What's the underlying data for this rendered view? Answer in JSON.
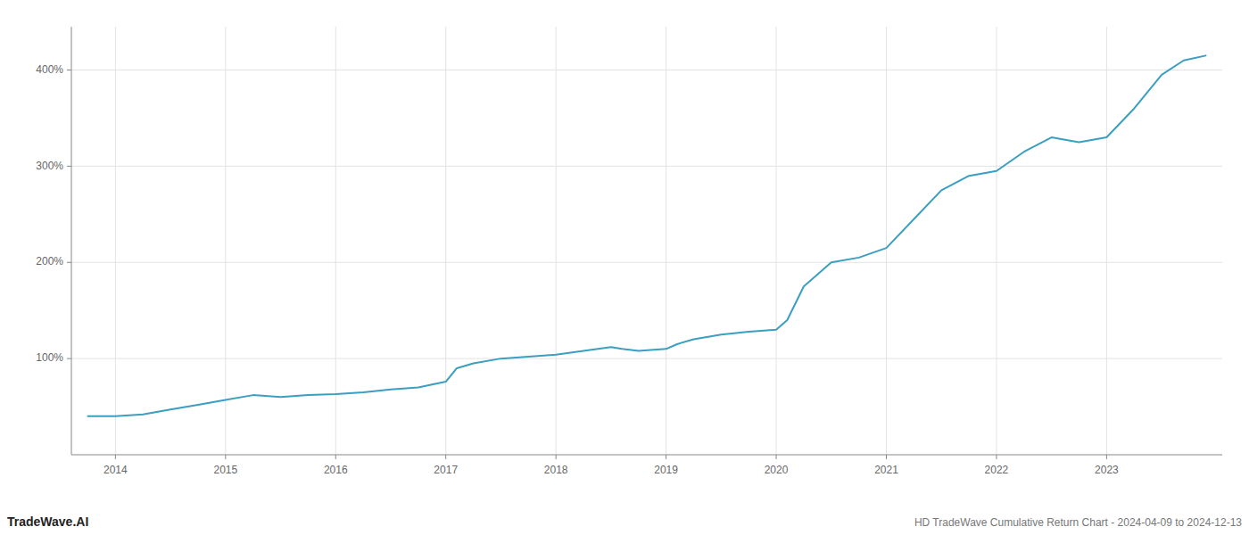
{
  "chart_data": {
    "type": "line",
    "title": "HD TradeWave Cumulative Return Chart - 2024-04-09 to 2024-12-13",
    "annotations": [
      {
        "text": "TradeWave.AI"
      }
    ],
    "x": [
      2013.75,
      2014.0,
      2014.25,
      2014.5,
      2014.75,
      2015.0,
      2015.25,
      2015.5,
      2015.75,
      2016.0,
      2016.25,
      2016.5,
      2016.75,
      2017.0,
      2017.1,
      2017.25,
      2017.5,
      2017.75,
      2018.0,
      2018.25,
      2018.5,
      2018.6,
      2018.75,
      2019.0,
      2019.1,
      2019.25,
      2019.5,
      2019.75,
      2020.0,
      2020.1,
      2020.25,
      2020.5,
      2020.75,
      2021.0,
      2021.25,
      2021.5,
      2021.75,
      2022.0,
      2022.25,
      2022.5,
      2022.6,
      2022.75,
      2023.0,
      2023.25,
      2023.5,
      2023.7,
      2023.9
    ],
    "values": [
      40,
      40,
      42,
      47,
      52,
      57,
      62,
      60,
      62,
      63,
      65,
      68,
      70,
      76,
      90,
      95,
      100,
      102,
      104,
      108,
      112,
      110,
      108,
      110,
      115,
      120,
      125,
      128,
      130,
      140,
      175,
      200,
      205,
      215,
      245,
      275,
      290,
      295,
      315,
      330,
      328,
      325,
      330,
      360,
      395,
      410,
      415
    ],
    "color": "#3a9fc0",
    "xlim": [
      2013.6,
      2024.05
    ],
    "xticks": [
      2014,
      2015,
      2016,
      2017,
      2018,
      2019,
      2020,
      2021,
      2022,
      2023
    ],
    "ylim": [
      0,
      445
    ],
    "yticks": [
      {
        "value": 100,
        "label": "100%"
      },
      {
        "value": 200,
        "label": "200%"
      },
      {
        "value": 300,
        "label": "300%"
      },
      {
        "value": 400,
        "label": "400%"
      }
    ],
    "grid": true
  }
}
